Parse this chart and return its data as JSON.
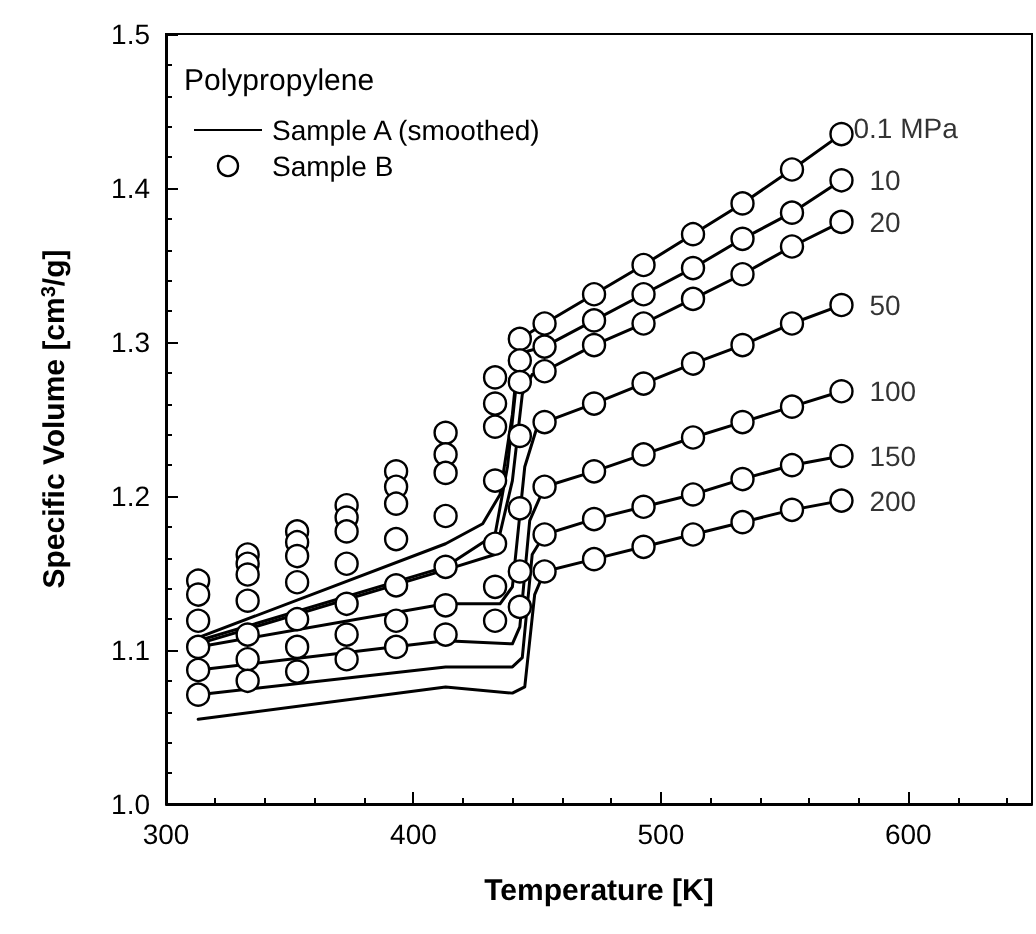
{
  "chart_data": {
    "type": "line",
    "xlabel": "Temperature [K]",
    "ylabel": "Specific Volume [cm$^{3}$/g]",
    "legend_title": "Polypropylene",
    "legend": "top left",
    "grid": false,
    "line_style": "solid",
    "xlim": [
      300,
      650
    ],
    "xticks": [
      300,
      400,
      500,
      600
    ],
    "ylim": [
      1.0,
      1.5
    ],
    "yticks": [
      {
        "value": 1.0,
        "label": "1.0"
      },
      {
        "value": 1.1,
        "label": "1.1"
      },
      {
        "value": 1.2,
        "label": "1.2"
      },
      {
        "value": 1.3,
        "label": "1.3"
      },
      {
        "value": 1.4,
        "label": "1.4"
      },
      {
        "value": 1.5,
        "label": "1.5"
      }
    ],
    "series": [
      {
        "name": "Sample A (smoothed)",
        "color": "#000000",
        "marker": "none",
        "x": [
          313,
          413,
          428,
          435,
          440,
          443,
          453,
          473,
          493,
          513,
          533,
          553,
          573
        ],
        "values": [
          1.108,
          1.169,
          1.182,
          1.201,
          1.253,
          1.302,
          1.312,
          1.331,
          1.35,
          1.37,
          1.39,
          1.412,
          1.435
        ]
      },
      {
        "color": "#000000",
        "marker": "none",
        "x": [
          313,
          413,
          433,
          438,
          442,
          446,
          453,
          473,
          493,
          513,
          533,
          553,
          573
        ],
        "values": [
          1.106,
          1.154,
          1.175,
          1.219,
          1.279,
          1.294,
          1.297,
          1.314,
          1.331,
          1.348,
          1.367,
          1.384,
          1.405
        ]
      },
      {
        "color": "#000000",
        "marker": "none",
        "x": [
          313,
          413,
          433,
          440,
          444,
          448,
          453,
          473,
          493,
          513,
          533,
          553,
          573
        ],
        "values": [
          1.104,
          1.152,
          1.162,
          1.21,
          1.266,
          1.279,
          1.281,
          1.298,
          1.312,
          1.328,
          1.344,
          1.362,
          1.378
        ]
      },
      {
        "color": "#000000",
        "marker": "none",
        "x": [
          313,
          413,
          435,
          440,
          445,
          450,
          453,
          473,
          493,
          513,
          533,
          553,
          573
        ],
        "values": [
          1.102,
          1.13,
          1.13,
          1.141,
          1.219,
          1.245,
          1.248,
          1.26,
          1.273,
          1.286,
          1.298,
          1.312,
          1.324
        ]
      },
      {
        "color": "#000000",
        "marker": "none",
        "x": [
          313,
          413,
          440,
          443,
          447,
          453,
          473,
          493,
          513,
          533,
          553,
          573
        ],
        "values": [
          1.087,
          1.106,
          1.104,
          1.115,
          1.184,
          1.206,
          1.216,
          1.227,
          1.238,
          1.248,
          1.258,
          1.268
        ]
      },
      {
        "color": "#000000",
        "marker": "none",
        "x": [
          313,
          413,
          440,
          444,
          448,
          453,
          473,
          493,
          513,
          533,
          553,
          573
        ],
        "values": [
          1.071,
          1.089,
          1.089,
          1.095,
          1.162,
          1.175,
          1.185,
          1.193,
          1.201,
          1.211,
          1.22,
          1.226
        ]
      },
      {
        "color": "#000000",
        "marker": "none",
        "x": [
          313,
          413,
          440,
          445,
          449,
          453,
          473,
          493,
          513,
          533,
          553,
          573
        ],
        "values": [
          1.055,
          1.076,
          1.072,
          1.076,
          1.136,
          1.151,
          1.159,
          1.167,
          1.175,
          1.183,
          1.191,
          1.197
        ]
      },
      {
        "name": "Sample B",
        "type": "scatter",
        "color": "#000000",
        "marker": "circle",
        "x": [
          313,
          313,
          313,
          313,
          313,
          313,
          333,
          333,
          333,
          333,
          333,
          333,
          333,
          353,
          353,
          353,
          353,
          353,
          353,
          353,
          373,
          373,
          373,
          373,
          373,
          373,
          373,
          393,
          393,
          393,
          393,
          393,
          393,
          393,
          413,
          413,
          413,
          413,
          413,
          413,
          413,
          433,
          433,
          433,
          433,
          433,
          433,
          433,
          443,
          443,
          443,
          443,
          443,
          443,
          443,
          453,
          453,
          453,
          453,
          453,
          453,
          453,
          473,
          473,
          473,
          473,
          473,
          473,
          473,
          493,
          493,
          493,
          493,
          493,
          493,
          493,
          513,
          513,
          513,
          513,
          513,
          513,
          513,
          533,
          533,
          533,
          533,
          533,
          533,
          533,
          553,
          553,
          553,
          553,
          553,
          553,
          553,
          573,
          573,
          573,
          573,
          573,
          573,
          573
        ],
        "values": [
          1.145,
          1.136,
          1.119,
          1.102,
          1.087,
          1.071,
          1.162,
          1.156,
          1.149,
          1.132,
          1.11,
          1.094,
          1.08,
          1.177,
          1.17,
          1.161,
          1.144,
          1.12,
          1.102,
          1.086,
          1.194,
          1.186,
          1.177,
          1.156,
          1.13,
          1.11,
          1.094,
          1.216,
          1.206,
          1.195,
          1.172,
          1.142,
          1.119,
          1.102,
          1.241,
          1.227,
          1.215,
          1.187,
          1.154,
          1.129,
          1.11,
          1.277,
          1.26,
          1.245,
          1.21,
          1.169,
          1.141,
          1.119,
          1.302,
          1.288,
          1.274,
          1.239,
          1.192,
          1.151,
          1.128,
          1.312,
          1.297,
          1.281,
          1.248,
          1.206,
          1.175,
          1.151,
          1.331,
          1.314,
          1.298,
          1.26,
          1.216,
          1.185,
          1.159,
          1.35,
          1.331,
          1.312,
          1.273,
          1.227,
          1.193,
          1.167,
          1.37,
          1.348,
          1.328,
          1.286,
          1.238,
          1.201,
          1.175,
          1.39,
          1.367,
          1.344,
          1.298,
          1.248,
          1.211,
          1.183,
          1.412,
          1.384,
          1.362,
          1.312,
          1.258,
          1.22,
          1.191,
          1.435,
          1.405,
          1.378,
          1.324,
          1.268,
          1.226,
          1.197
        ]
      }
    ],
    "annotations": [
      "0.1 MPa",
      "10",
      "20",
      "50",
      "100",
      "150",
      "200"
    ]
  }
}
